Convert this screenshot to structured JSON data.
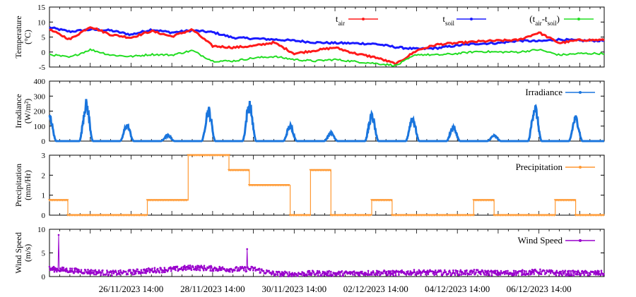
{
  "chart_data": {
    "type": "line",
    "x_range": [
      "24/11/2023 14:00",
      "07/12/2023 14:00"
    ],
    "x_tick_labels": [
      "26/11/2023 14:00",
      "28/11/2023 14:00",
      "30/11/2023 14:00",
      "02/12/2023 14:00",
      "04/12/2023 14:00",
      "06/12/2023 14:00"
    ],
    "colors": {
      "tair": "#ff1a1a",
      "tsoil": "#1a1aff",
      "diff": "#22dd22",
      "irradiance": "#1a75dd",
      "precipitation": "#ff9933",
      "wind": "#9900cc"
    },
    "panels": [
      {
        "id": "temperature",
        "ylabel_line1": "Temperature",
        "ylabel_line2": "(°C)",
        "ylim": [
          -5,
          15
        ],
        "y_ticks": [
          -5,
          0,
          5,
          10,
          15
        ],
        "series": [
          {
            "key": "tsoil",
            "legend_label": "tsoil",
            "x_days": [
              0,
              0.5,
              1,
              1.5,
              2,
              2.5,
              3,
              3.5,
              4,
              4.5,
              5,
              5.5,
              6,
              6.5,
              7,
              7.5,
              8,
              8.5,
              9,
              9.5,
              10,
              10.5,
              11,
              11.5,
              12,
              12.5,
              13
            ],
            "values": [
              8.2,
              6.8,
              7.5,
              7.2,
              5.8,
              7.5,
              6.5,
              7.2,
              6.6,
              4.8,
              4.5,
              4.2,
              3.8,
              3.2,
              3.0,
              2.9,
              2.7,
              1.6,
              1.0,
              1.3,
              2.2,
              2.8,
              3.0,
              3.8,
              3.6,
              4.2,
              3.8
            ]
          },
          {
            "key": "tair",
            "legend_label": "tair",
            "x_days": [
              0,
              0.5,
              1,
              1.5,
              2,
              2.5,
              3,
              3.5,
              4,
              4.5,
              5,
              5.5,
              6,
              6.5,
              7,
              7.5,
              8,
              8.5,
              9,
              9.5,
              10,
              10.5,
              11,
              11.5,
              12,
              12.5,
              13
            ],
            "values": [
              7.5,
              4.2,
              8.5,
              5.8,
              4.8,
              7.0,
              5.2,
              7.5,
              2.0,
              1.5,
              2.0,
              3.2,
              -0.5,
              0.5,
              1.5,
              -0.5,
              -1.8,
              -4.0,
              0.5,
              2.5,
              3.0,
              3.5,
              3.8,
              4.0,
              6.5,
              3.0,
              4.0
            ]
          },
          {
            "key": "diff",
            "legend_label": "(tair-tsoil)",
            "x_days": [
              0,
              0.5,
              1,
              1.5,
              2,
              2.5,
              3,
              3.5,
              4,
              4.5,
              5,
              5.5,
              6,
              6.5,
              7,
              7.5,
              8,
              8.5,
              9,
              9.5,
              10,
              10.5,
              11,
              11.5,
              12,
              12.5,
              13
            ],
            "values": [
              -0.8,
              -1.8,
              0.8,
              -1.0,
              -1.5,
              -0.8,
              -1.0,
              0.5,
              -3.0,
              -3.0,
              -2.0,
              -1.5,
              -2.5,
              -3.0,
              -2.5,
              -3.2,
              -3.8,
              -4.5,
              -0.8,
              -1.0,
              -0.5,
              0.2,
              0.0,
              0.0,
              0.8,
              -1.0,
              -0.5
            ]
          }
        ]
      },
      {
        "id": "irradiance",
        "ylabel_line1": "Irradiance",
        "ylabel_line2": "(W/m²)",
        "ylim": [
          0,
          400
        ],
        "y_ticks": [
          0,
          100,
          200,
          300,
          400
        ],
        "legend_label": "Irradiance",
        "daily_peaks": [
          {
            "day_center": 0.0,
            "peak": 165
          },
          {
            "day_center": 0.9,
            "peak": 258
          },
          {
            "day_center": 1.9,
            "peak": 110
          },
          {
            "day_center": 2.9,
            "peak": 40
          },
          {
            "day_center": 3.9,
            "peak": 215
          },
          {
            "day_center": 4.9,
            "peak": 255
          },
          {
            "day_center": 5.9,
            "peak": 105
          },
          {
            "day_center": 6.9,
            "peak": 58
          },
          {
            "day_center": 7.9,
            "peak": 175
          },
          {
            "day_center": 8.9,
            "peak": 160
          },
          {
            "day_center": 9.9,
            "peak": 95
          },
          {
            "day_center": 10.9,
            "peak": 38
          },
          {
            "day_center": 11.9,
            "peak": 235
          },
          {
            "day_center": 12.9,
            "peak": 160
          }
        ]
      },
      {
        "id": "precipitation",
        "ylabel_line1": "Precipitation",
        "ylabel_line2": "(mm/Hr)",
        "ylim": [
          0,
          3
        ],
        "y_ticks": [
          0,
          1,
          2,
          3
        ],
        "legend_label": "Precipitation",
        "steps": [
          {
            "x_start": 0.0,
            "x_end": 0.45,
            "value": 0.75
          },
          {
            "x_start": 0.45,
            "x_end": 2.4,
            "value": 0.0
          },
          {
            "x_start": 2.4,
            "x_end": 3.4,
            "value": 0.75
          },
          {
            "x_start": 3.4,
            "x_end": 4.4,
            "value": 3.0
          },
          {
            "x_start": 4.4,
            "x_end": 4.9,
            "value": 2.25
          },
          {
            "x_start": 4.9,
            "x_end": 5.9,
            "value": 1.5
          },
          {
            "x_start": 5.9,
            "x_end": 6.4,
            "value": 0.0
          },
          {
            "x_start": 6.4,
            "x_end": 6.9,
            "value": 2.25
          },
          {
            "x_start": 6.9,
            "x_end": 7.9,
            "value": 0.0
          },
          {
            "x_start": 7.9,
            "x_end": 8.4,
            "value": 0.75
          },
          {
            "x_start": 8.4,
            "x_end": 10.4,
            "value": 0.0
          },
          {
            "x_start": 10.4,
            "x_end": 10.9,
            "value": 0.75
          },
          {
            "x_start": 10.9,
            "x_end": 12.4,
            "value": 0.0
          },
          {
            "x_start": 12.4,
            "x_end": 12.9,
            "value": 0.75
          },
          {
            "x_start": 12.9,
            "x_end": 13.6,
            "value": 0.0
          }
        ]
      },
      {
        "id": "wind",
        "ylabel_line1": "Wind Speed",
        "ylabel_line2": "(m/s)",
        "ylim": [
          0,
          10
        ],
        "y_ticks": [
          0,
          5,
          10
        ],
        "legend_label": "Wind Speed",
        "x_days": [
          0,
          0.5,
          1,
          1.5,
          2,
          2.5,
          3,
          3.5,
          4,
          4.5,
          5,
          5.5,
          6,
          6.5,
          7,
          7.5,
          8,
          8.5,
          9,
          9.5,
          10,
          10.5,
          11,
          11.5,
          12,
          12.5,
          13
        ],
        "values": [
          1.5,
          1.2,
          0.9,
          0.6,
          0.8,
          1.2,
          1.4,
          1.8,
          1.6,
          1.4,
          1.5,
          0.5,
          0.4,
          0.6,
          0.5,
          0.6,
          0.7,
          0.6,
          0.8,
          0.7,
          0.7,
          0.8,
          0.6,
          0.7,
          0.9,
          0.6,
          0.6
        ],
        "spikes": [
          {
            "x_day": 0.22,
            "value": 8.8
          },
          {
            "x_day": 4.85,
            "value": 5.8
          }
        ]
      }
    ]
  }
}
